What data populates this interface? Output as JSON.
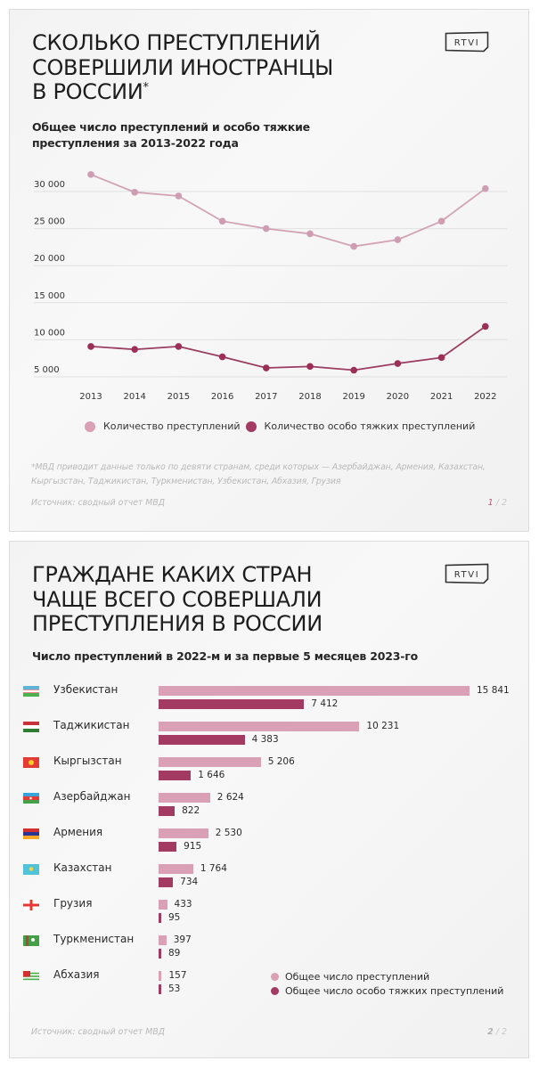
{
  "card1": {
    "title_lines": [
      "СКОЛЬКО ПРЕСТУПЛЕНИЙ",
      "СОВЕРШИЛИ ИНОСТРАНЦЫ",
      "В РОССИИ"
    ],
    "title_mark": "*",
    "logo": "RTVI",
    "subtitle_lines": [
      "Общее число преступлений и особо тяжкие",
      "преступления за 2013-2022 года"
    ],
    "legend": [
      {
        "label": "Количество преступлений",
        "color": "#d9a0b6"
      },
      {
        "label": "Количество особо тяжких преступлений",
        "color": "#a33a62"
      }
    ],
    "footnote": "*МВД приводит данные только по девяти странам, среди которых — Азербайджан, Армения, Казахстан, Кыргызстан, Таджикистан, Туркменистан, Узбекистан, Абхазия, Грузия",
    "source": "Источник: сводный отчет МВД",
    "page_current": "1",
    "page_sep": " / ",
    "page_total": "2"
  },
  "card2": {
    "title_lines": [
      "ГРАЖДАНЕ КАКИХ СТРАН",
      "ЧАЩЕ ВСЕГО СОВЕРШАЛИ",
      "ПРЕСТУПЛЕНИЯ В РОССИИ"
    ],
    "logo": "RTVI",
    "subtitle": "Число преступлений в 2022-м и за первые 5 месяцев 2023-го",
    "legend": [
      {
        "label": "Общее число преступлений",
        "color": "#d9a0b6"
      },
      {
        "label": "Общее число особо тяжких преступлений",
        "color": "#a33a62"
      }
    ],
    "source": "Источник: сводный отчет МВД",
    "page_current": "2",
    "page_sep": " / ",
    "page_total": "2"
  },
  "chart_data": [
    {
      "type": "line",
      "title": "Общее число преступлений и особо тяжкие преступления за 2013-2022 года",
      "x": [
        "2013",
        "2014",
        "2015",
        "2016",
        "2017",
        "2018",
        "2019",
        "2020",
        "2021",
        "2022"
      ],
      "series": [
        {
          "name": "Количество преступлений",
          "color": "#d9a0b6",
          "values": [
            32300,
            29900,
            29400,
            26000,
            25000,
            24300,
            22600,
            23500,
            26000,
            30400
          ]
        },
        {
          "name": "Количество особо тяжких преступлений",
          "color": "#a33a62",
          "values": [
            9100,
            8700,
            9100,
            7700,
            6200,
            6400,
            5900,
            6800,
            7600,
            11800
          ]
        }
      ],
      "yticks": [
        5000,
        10000,
        15000,
        20000,
        25000,
        30000
      ],
      "ytick_labels": [
        "5 000",
        "10 000",
        "15 000",
        "20 000",
        "25 000",
        "30 000"
      ],
      "ylim": [
        3000,
        33000
      ],
      "grid": true,
      "legend_position": "bottom",
      "xlabel": "",
      "ylabel": ""
    },
    {
      "type": "bar",
      "orientation": "horizontal",
      "title": "Число преступлений в 2022-м и за первые 5 месяцев 2023-го",
      "categories": [
        "Узбекистан",
        "Таджикистан",
        "Кыргызстан",
        "Азербайджан",
        "Армения",
        "Казахстан",
        "Грузия",
        "Туркменистан",
        "Абхазия"
      ],
      "series": [
        {
          "name": "Общее число преступлений",
          "color": "#d9a0b6",
          "values": [
            15841,
            10231,
            5206,
            2624,
            2530,
            1764,
            433,
            397,
            157
          ],
          "labels": [
            "15 841",
            "10 231",
            "5 206",
            "2 624",
            "2 530",
            "1 764",
            "433",
            "397",
            "157"
          ]
        },
        {
          "name": "Общее число особо тяжких преступлений",
          "color": "#a33a62",
          "values": [
            7412,
            4383,
            1646,
            822,
            915,
            734,
            95,
            89,
            53
          ],
          "labels": [
            "7 412",
            "4 383",
            "1 646",
            "822",
            "915",
            "734",
            "95",
            "89",
            "53"
          ]
        }
      ],
      "legend_position": "bottom-right",
      "grid": false
    }
  ]
}
